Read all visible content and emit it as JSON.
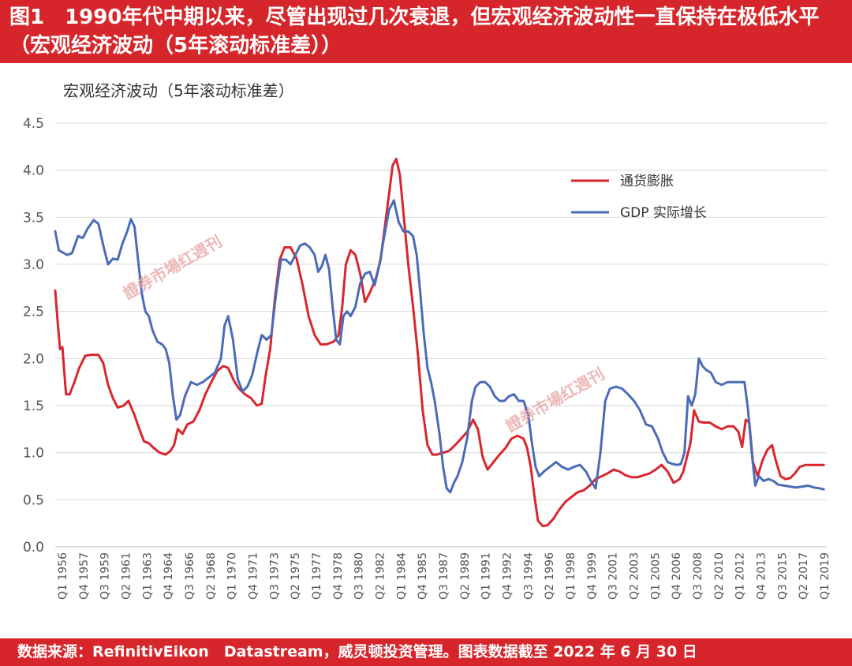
{
  "header": {
    "title": "图1　1990年代中期以来，尽管出现过几次衰退，但宏观经济波动性一直保持在极低水平（宏观经济波动（5年滚动标准差））"
  },
  "footer": {
    "source": "数据来源：RefinitivEikon　Datastream，威灵顿投资管理。图表数据截至 2022 年 6 月 30 日"
  },
  "watermark": {
    "text": "證券市場红週刊"
  },
  "colors": {
    "inflation": "#d9262e",
    "gdp": "#4a6cb8",
    "grid": "#d9d9d9",
    "axis_text": "#555555"
  },
  "chart_data": {
    "type": "line",
    "title": "宏观经济波动（5年滚动标准差）",
    "xlabel": "",
    "ylabel": "",
    "ylim": [
      0,
      4.5
    ],
    "yticks": [
      0.0,
      0.5,
      1.0,
      1.5,
      2.0,
      2.5,
      3.0,
      3.5,
      4.0,
      4.5
    ],
    "ytick_labels": [
      "0.0",
      "0.5",
      "1.0",
      "1.5",
      "2.0",
      "2.5",
      "3.0",
      "3.5",
      "4.0",
      "4.5"
    ],
    "xlim": [
      1956.0,
      2020.25
    ],
    "x_tick_labels": [
      "Q1 1956",
      "Q4 1957",
      "Q3 1959",
      "Q2 1961",
      "Q1 1963",
      "Q4 1964",
      "Q3 1966",
      "Q2 1968",
      "Q1 1970",
      "Q4 1971",
      "Q3 1973",
      "Q2 1975",
      "Q1 1977",
      "Q4 1978",
      "Q3 1980",
      "Q2 1982",
      "Q1 1984",
      "Q4 1985",
      "Q3 1987",
      "Q2 1989",
      "Q1 1991",
      "Q4 1992",
      "Q3 1994",
      "Q2 1996",
      "Q1 1998",
      "Q4 1999",
      "Q3 2001",
      "Q2 2003",
      "Q1 2005",
      "Q4 2006",
      "Q3 2008",
      "Q2 2010",
      "Q1 2012",
      "Q4 2013",
      "Q3 2015",
      "Q2 2017",
      "Q1 2019"
    ],
    "legend_position": "top-right",
    "grid": true,
    "series": [
      {
        "name": "通货膨胀",
        "color": "#d9262e",
        "x": [
          1956.0,
          1956.2,
          1956.4,
          1956.6,
          1956.9,
          1957.2,
          1957.6,
          1958.0,
          1958.5,
          1959.0,
          1959.6,
          1960.0,
          1960.4,
          1960.8,
          1961.2,
          1961.7,
          1962.1,
          1962.6,
          1963.0,
          1963.4,
          1963.8,
          1964.2,
          1964.7,
          1965.2,
          1965.6,
          1965.9,
          1966.2,
          1966.6,
          1967.0,
          1967.5,
          1968.0,
          1968.5,
          1969.0,
          1969.5,
          1970.0,
          1970.4,
          1970.9,
          1971.3,
          1971.8,
          1972.3,
          1972.8,
          1973.2,
          1973.5,
          1973.9,
          1974.3,
          1974.7,
          1975.1,
          1975.6,
          1976.1,
          1976.6,
          1977.1,
          1977.6,
          1978.1,
          1978.6,
          1979.2,
          1979.6,
          1979.9,
          1980.2,
          1980.6,
          1981.0,
          1981.4,
          1981.8,
          1982.2,
          1982.7,
          1983.1,
          1983.5,
          1983.8,
          1984.1,
          1984.4,
          1984.7,
          1985.0,
          1985.4,
          1985.8,
          1986.2,
          1986.6,
          1987.0,
          1987.4,
          1987.8,
          1988.3,
          1988.8,
          1989.3,
          1989.8,
          1990.3,
          1990.8,
          1991.2,
          1991.6,
          1992.0,
          1992.5,
          1993.0,
          1993.5,
          1994.0,
          1994.5,
          1995.0,
          1995.3,
          1995.6,
          1995.9,
          1996.2,
          1996.6,
          1997.0,
          1997.5,
          1998.0,
          1998.5,
          1999.0,
          1999.5,
          2000.0,
          2000.5,
          2001.0,
          2001.5,
          2002.0,
          2002.5,
          2003.0,
          2003.5,
          2004.0,
          2004.5,
          2005.0,
          2005.5,
          2006.0,
          2006.5,
          2007.0,
          2007.5,
          2008.0,
          2008.3,
          2008.6,
          2008.9,
          2009.2,
          2009.6,
          2010.0,
          2010.5,
          2011.0,
          2011.5,
          2012.0,
          2012.5,
          2012.9,
          2013.2,
          2013.5,
          2013.8,
          2014.1,
          2014.5,
          2014.9,
          2015.3,
          2015.7,
          2016.0,
          2016.4,
          2016.8,
          2017.2,
          2017.6,
          2018.0,
          2018.5,
          2019.0,
          2019.5,
          2020.0
        ],
        "values": [
          2.72,
          2.4,
          2.1,
          2.12,
          1.62,
          1.62,
          1.75,
          1.9,
          2.03,
          2.04,
          2.04,
          1.95,
          1.72,
          1.58,
          1.48,
          1.5,
          1.55,
          1.4,
          1.25,
          1.12,
          1.1,
          1.05,
          1.0,
          0.98,
          1.02,
          1.08,
          1.25,
          1.2,
          1.3,
          1.33,
          1.45,
          1.62,
          1.75,
          1.87,
          1.92,
          1.9,
          1.76,
          1.68,
          1.62,
          1.58,
          1.5,
          1.52,
          1.8,
          2.1,
          2.65,
          3.05,
          3.18,
          3.18,
          3.06,
          2.78,
          2.45,
          2.25,
          2.15,
          2.15,
          2.18,
          2.25,
          2.55,
          3.0,
          3.15,
          3.1,
          2.9,
          2.6,
          2.7,
          2.85,
          3.05,
          3.45,
          3.75,
          4.05,
          4.12,
          3.95,
          3.55,
          3.0,
          2.55,
          2.05,
          1.45,
          1.08,
          0.98,
          0.98,
          1.0,
          1.02,
          1.08,
          1.15,
          1.22,
          1.35,
          1.25,
          0.95,
          0.82,
          0.9,
          0.98,
          1.05,
          1.15,
          1.18,
          1.15,
          1.05,
          0.85,
          0.55,
          0.28,
          0.22,
          0.23,
          0.3,
          0.4,
          0.48,
          0.53,
          0.58,
          0.6,
          0.65,
          0.72,
          0.75,
          0.78,
          0.82,
          0.8,
          0.76,
          0.74,
          0.74,
          0.76,
          0.78,
          0.82,
          0.87,
          0.8,
          0.68,
          0.72,
          0.8,
          0.95,
          1.1,
          1.45,
          1.33,
          1.32,
          1.32,
          1.28,
          1.25,
          1.28,
          1.28,
          1.22,
          1.06,
          1.35,
          1.32,
          0.9,
          0.75,
          0.92,
          1.03,
          1.08,
          0.92,
          0.75,
          0.72,
          0.73,
          0.78,
          0.85,
          0.87,
          0.87,
          0.87,
          0.87
        ]
      },
      {
        "name": "GDP 实际增长",
        "color": "#4a6cb8",
        "x": [
          1956.0,
          1956.3,
          1956.7,
          1957.0,
          1957.4,
          1957.9,
          1958.3,
          1958.7,
          1959.2,
          1959.6,
          1960.0,
          1960.4,
          1960.8,
          1961.2,
          1961.6,
          1962.0,
          1962.3,
          1962.6,
          1962.9,
          1963.2,
          1963.5,
          1963.8,
          1964.1,
          1964.5,
          1964.9,
          1965.2,
          1965.5,
          1965.8,
          1966.1,
          1966.4,
          1966.8,
          1967.3,
          1967.8,
          1968.3,
          1968.8,
          1969.3,
          1969.8,
          1970.1,
          1970.4,
          1970.8,
          1971.2,
          1971.6,
          1972.0,
          1972.4,
          1972.8,
          1973.2,
          1973.6,
          1974.0,
          1974.4,
          1974.8,
          1975.2,
          1975.6,
          1976.0,
          1976.4,
          1976.8,
          1977.2,
          1977.6,
          1977.9,
          1978.2,
          1978.5,
          1978.8,
          1979.1,
          1979.4,
          1979.7,
          1980.0,
          1980.3,
          1980.6,
          1981.0,
          1981.4,
          1981.8,
          1982.2,
          1982.6,
          1983.0,
          1983.4,
          1983.8,
          1984.2,
          1984.6,
          1985.0,
          1985.4,
          1985.8,
          1986.1,
          1986.4,
          1986.7,
          1987.0,
          1987.3,
          1987.6,
          1988.0,
          1988.3,
          1988.6,
          1988.9,
          1989.2,
          1989.5,
          1989.9,
          1990.3,
          1990.7,
          1991.0,
          1991.4,
          1991.8,
          1992.2,
          1992.6,
          1993.0,
          1993.4,
          1993.8,
          1994.2,
          1994.6,
          1995.0,
          1995.4,
          1995.7,
          1996.0,
          1996.3,
          1996.7,
          1997.2,
          1997.7,
          1998.2,
          1998.7,
          1999.2,
          1999.7,
          2000.2,
          2000.6,
          2001.0,
          2001.4,
          2001.8,
          2002.2,
          2002.7,
          2003.2,
          2003.7,
          2004.2,
          2004.7,
          2005.2,
          2005.7,
          2006.2,
          2006.6,
          2007.0,
          2007.4,
          2007.8,
          2008.1,
          2008.4,
          2008.7,
          2009.0,
          2009.3,
          2009.6,
          2009.9,
          2010.2,
          2010.6,
          2011.0,
          2011.5,
          2012.0,
          2012.5,
          2013.0,
          2013.4,
          2013.7,
          2014.0,
          2014.3,
          2014.6,
          2015.0,
          2015.4,
          2015.8,
          2016.2,
          2016.7,
          2017.2,
          2017.7,
          2018.2,
          2018.7,
          2019.2,
          2019.7,
          2020.0
        ],
        "values": [
          3.35,
          3.15,
          3.12,
          3.1,
          3.12,
          3.3,
          3.28,
          3.38,
          3.47,
          3.43,
          3.2,
          3.0,
          3.06,
          3.05,
          3.22,
          3.35,
          3.48,
          3.4,
          3.05,
          2.7,
          2.5,
          2.45,
          2.3,
          2.18,
          2.15,
          2.1,
          1.95,
          1.6,
          1.35,
          1.4,
          1.6,
          1.75,
          1.72,
          1.75,
          1.8,
          1.85,
          2.0,
          2.35,
          2.45,
          2.2,
          1.78,
          1.65,
          1.7,
          1.82,
          2.05,
          2.25,
          2.2,
          2.25,
          2.7,
          3.05,
          3.05,
          3.0,
          3.1,
          3.2,
          3.22,
          3.18,
          3.1,
          2.92,
          2.98,
          3.1,
          2.95,
          2.55,
          2.2,
          2.15,
          2.45,
          2.5,
          2.45,
          2.55,
          2.8,
          2.9,
          2.92,
          2.78,
          3.0,
          3.3,
          3.58,
          3.68,
          3.45,
          3.35,
          3.35,
          3.3,
          3.1,
          2.7,
          2.25,
          1.9,
          1.75,
          1.55,
          1.2,
          0.85,
          0.62,
          0.58,
          0.68,
          0.75,
          0.9,
          1.15,
          1.55,
          1.7,
          1.75,
          1.75,
          1.7,
          1.6,
          1.55,
          1.55,
          1.6,
          1.62,
          1.55,
          1.55,
          1.4,
          1.1,
          0.85,
          0.75,
          0.8,
          0.85,
          0.9,
          0.85,
          0.82,
          0.85,
          0.87,
          0.8,
          0.7,
          0.62,
          1.0,
          1.55,
          1.68,
          1.7,
          1.68,
          1.62,
          1.55,
          1.45,
          1.3,
          1.28,
          1.15,
          1.0,
          0.9,
          0.88,
          0.87,
          0.88,
          1.0,
          1.6,
          1.5,
          1.62,
          2.0,
          1.92,
          1.88,
          1.85,
          1.75,
          1.72,
          1.75,
          1.75,
          1.75,
          1.75,
          1.45,
          1.0,
          0.65,
          0.75,
          0.7,
          0.72,
          0.7,
          0.66,
          0.65,
          0.64,
          0.63,
          0.64,
          0.65,
          0.63,
          0.62,
          0.61
        ]
      }
    ]
  }
}
